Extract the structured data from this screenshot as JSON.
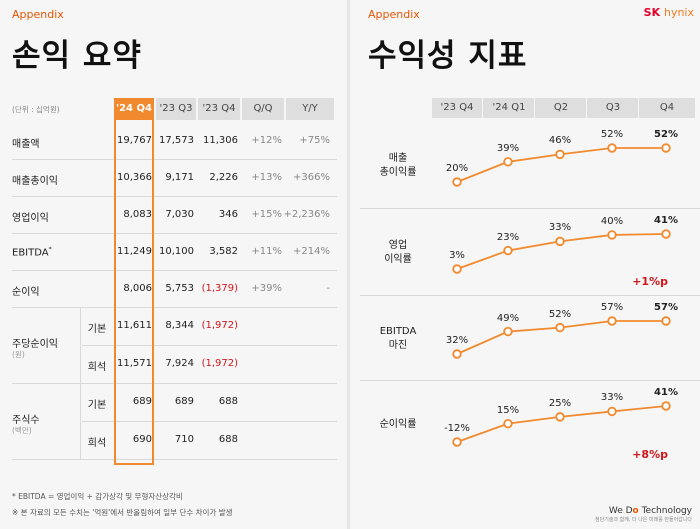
{
  "left": {
    "appendix": "Appendix",
    "title": "손익 요약",
    "unit": "(단위 : 십억원)",
    "headers": [
      "'24 Q4",
      "'23 Q3",
      "'23 Q4",
      "Q/Q",
      "Y/Y"
    ],
    "rows": [
      {
        "label": "매출액",
        "v": [
          "19,767",
          "17,573",
          "11,306",
          "+12%",
          "+75%"
        ]
      },
      {
        "label": "매출총이익",
        "v": [
          "10,366",
          "9,171",
          "2,226",
          "+13%",
          "+366%"
        ]
      },
      {
        "label": "영업이익",
        "v": [
          "8,083",
          "7,030",
          "346",
          "+15%",
          "+2,236%"
        ]
      },
      {
        "label": "EBITDA",
        "sup": "*",
        "v": [
          "11,249",
          "10,100",
          "3,582",
          "+11%",
          "+214%"
        ]
      },
      {
        "label": "순이익",
        "v": [
          "8,006",
          "5,753",
          "(1,379)",
          "+39%",
          "-"
        ]
      }
    ],
    "eps": {
      "label": "주당순이익",
      "sub": "(원)",
      "rows": [
        {
          "kind": "기본",
          "v": [
            "11,611",
            "8,344",
            "(1,972)"
          ]
        },
        {
          "kind": "희석",
          "v": [
            "11,571",
            "7,924",
            "(1,972)"
          ]
        }
      ]
    },
    "shares": {
      "label": "주식수",
      "sub": "(백만)",
      "rows": [
        {
          "kind": "기본",
          "v": [
            "689",
            "689",
            "688"
          ]
        },
        {
          "kind": "희석",
          "v": [
            "690",
            "710",
            "688"
          ]
        }
      ]
    },
    "foot1": "* EBITDA = 영업이익 + 감가상각 및 무형자산상각비",
    "foot2": "※ 본 자료의 모든 수치는 '억원'에서 반올림하여 일부 단수 차이가 발생",
    "highlight_color": "#f18a2e",
    "negative_color": "#d0161b"
  },
  "right": {
    "appendix": "Appendix",
    "title": "수익성 지표",
    "logo_sk": "SK",
    "logo_hynix": "hynix",
    "columns": [
      "'23 Q4",
      "'24 Q1",
      "Q2",
      "Q3",
      "Q4"
    ],
    "metrics": [
      {
        "name1": "매출",
        "name2": "총이익률",
        "values": [
          20,
          39,
          46,
          52,
          52
        ],
        "labels": [
          "20%",
          "39%",
          "46%",
          "52%",
          "52%"
        ],
        "delta": ""
      },
      {
        "name1": "영업",
        "name2": "이익률",
        "values": [
          3,
          23,
          33,
          40,
          41
        ],
        "labels": [
          "3%",
          "23%",
          "33%",
          "40%",
          "41%"
        ],
        "delta": "+1%p"
      },
      {
        "name1": "EBITDA",
        "name2": "마진",
        "values": [
          32,
          49,
          52,
          57,
          57
        ],
        "labels": [
          "32%",
          "49%",
          "52%",
          "57%",
          "57%"
        ],
        "delta": ""
      },
      {
        "name1": "순이익률",
        "name2": "",
        "values": [
          -12,
          15,
          25,
          33,
          41
        ],
        "labels": [
          "-12%",
          "15%",
          "25%",
          "33%",
          "41%"
        ],
        "delta": "+8%p"
      }
    ],
    "tagline_pre": "We D",
    "tagline_o": "o",
    "tagline_post": " Technology",
    "tagline_small": "첨단기술과 함께, 더 나은 미래를 만들어갑니다",
    "line_color": "#f18a2e"
  }
}
